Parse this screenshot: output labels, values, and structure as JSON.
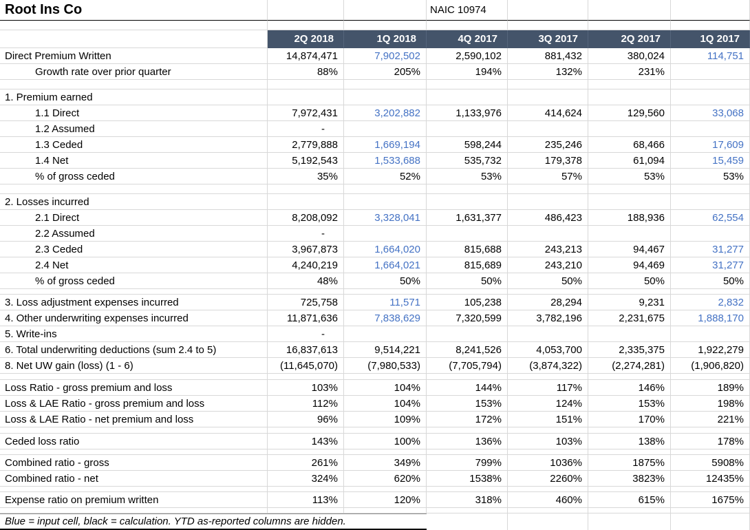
{
  "title": "Root Ins Co",
  "naic": "NAIC 10974",
  "footer_note": "Blue = input cell, black = calculation.  YTD as-reported columns are hidden.",
  "columns": [
    "2Q 2018",
    "1Q 2018",
    "4Q 2017",
    "3Q 2017",
    "2Q 2017",
    "1Q 2017"
  ],
  "colors": {
    "header_bg": "#44546A",
    "header_text": "#FFFFFF",
    "input_blue": "#4472C4",
    "calc_black": "#000000",
    "gridline": "#D8D8D8"
  },
  "rows": [
    {
      "label": "Direct Premium Written",
      "indent": 0,
      "values": [
        "14,874,471",
        "7,902,502",
        "2,590,102",
        "881,432",
        "380,024",
        "114,751"
      ],
      "blue": [
        1,
        5
      ]
    },
    {
      "label": "Growth rate over prior quarter",
      "indent": 1,
      "values": [
        "88%",
        "205%",
        "194%",
        "132%",
        "231%",
        ""
      ]
    },
    {
      "spacer": 14
    },
    {
      "label": "1. Premium earned",
      "indent": 0,
      "values": [
        "",
        "",
        "",
        "",
        "",
        ""
      ]
    },
    {
      "label": "1.1 Direct",
      "indent": 1,
      "values": [
        "7,972,431",
        "3,202,882",
        "1,133,976",
        "414,624",
        "129,560",
        "33,068"
      ],
      "blue": [
        1,
        5
      ]
    },
    {
      "label": "1.2 Assumed",
      "indent": 1,
      "values": [
        "-",
        "",
        "",
        "",
        "",
        ""
      ]
    },
    {
      "label": "1.3 Ceded",
      "indent": 1,
      "values": [
        "2,779,888",
        "1,669,194",
        "598,244",
        "235,246",
        "68,466",
        "17,609"
      ],
      "blue": [
        1,
        5
      ]
    },
    {
      "label": "1.4 Net",
      "indent": 1,
      "values": [
        "5,192,543",
        "1,533,688",
        "535,732",
        "179,378",
        "61,094",
        "15,459"
      ],
      "blue": [
        1,
        5
      ]
    },
    {
      "label": "% of gross ceded",
      "indent": 1,
      "values": [
        "35%",
        "52%",
        "53%",
        "57%",
        "53%",
        "53%"
      ]
    },
    {
      "spacer": 14
    },
    {
      "label": "2. Losses incurred",
      "indent": 0,
      "values": [
        "",
        "",
        "",
        "",
        "",
        ""
      ]
    },
    {
      "label": "2.1 Direct",
      "indent": 1,
      "values": [
        "8,208,092",
        "3,328,041",
        "1,631,377",
        "486,423",
        "188,936",
        "62,554"
      ],
      "blue": [
        1,
        5
      ]
    },
    {
      "label": "2.2 Assumed",
      "indent": 1,
      "values": [
        "-",
        "",
        "",
        "",
        "",
        ""
      ]
    },
    {
      "label": "2.3 Ceded",
      "indent": 1,
      "values": [
        "3,967,873",
        "1,664,020",
        "815,688",
        "243,213",
        "94,467",
        "31,277"
      ],
      "blue": [
        1,
        5
      ]
    },
    {
      "label": "2.4 Net",
      "indent": 1,
      "values": [
        "4,240,219",
        "1,664,021",
        "815,689",
        "243,210",
        "94,469",
        "31,277"
      ],
      "blue": [
        1,
        5
      ]
    },
    {
      "label": "% of gross ceded",
      "indent": 1,
      "values": [
        "48%",
        "50%",
        "50%",
        "50%",
        "50%",
        "50%"
      ]
    },
    {
      "spacer": 8
    },
    {
      "label": "3. Loss adjustment expenses incurred",
      "indent": 0,
      "values": [
        "725,758",
        "11,571",
        "105,238",
        "28,294",
        "9,231",
        "2,832"
      ],
      "blue": [
        1,
        5
      ]
    },
    {
      "label": "4. Other underwriting expenses incurred",
      "indent": 0,
      "values": [
        "11,871,636",
        "7,838,629",
        "7,320,599",
        "3,782,196",
        "2,231,675",
        "1,888,170"
      ],
      "blue": [
        1,
        5
      ]
    },
    {
      "label": "5. Write-ins",
      "indent": 0,
      "values": [
        "-",
        "",
        "",
        "",
        "",
        ""
      ]
    },
    {
      "label": "6. Total underwriting deductions (sum 2.4 to 5)",
      "indent": 0,
      "values": [
        "16,837,613",
        "9,514,221",
        "8,241,526",
        "4,053,700",
        "2,335,375",
        "1,922,279"
      ]
    },
    {
      "label": "8. Net UW gain (loss) (1 - 6)",
      "indent": 0,
      "values": [
        "(11,645,070)",
        "(7,980,533)",
        "(7,705,794)",
        "(3,874,322)",
        "(2,274,281)",
        "(1,906,820)"
      ]
    },
    {
      "spacer": 9
    },
    {
      "label": "Loss Ratio - gross premium and loss",
      "indent": 0,
      "values": [
        "103%",
        "104%",
        "144%",
        "117%",
        "146%",
        "189%"
      ]
    },
    {
      "label": "Loss & LAE Ratio - gross premium and loss",
      "indent": 0,
      "values": [
        "112%",
        "104%",
        "153%",
        "124%",
        "153%",
        "198%"
      ]
    },
    {
      "label": "Loss & LAE Ratio - net premium and loss",
      "indent": 0,
      "values": [
        "96%",
        "109%",
        "172%",
        "151%",
        "170%",
        "221%"
      ]
    },
    {
      "spacer": 9
    },
    {
      "label": "Ceded loss ratio",
      "indent": 0,
      "values": [
        "143%",
        "100%",
        "136%",
        "103%",
        "138%",
        "178%"
      ]
    },
    {
      "spacer": 8
    },
    {
      "label": "Combined ratio - gross",
      "indent": 0,
      "values": [
        "261%",
        "349%",
        "799%",
        "1036%",
        "1875%",
        "5908%"
      ]
    },
    {
      "label": "Combined ratio - net",
      "indent": 0,
      "values": [
        "324%",
        "620%",
        "1538%",
        "2260%",
        "3823%",
        "12435%"
      ]
    },
    {
      "spacer": 8
    },
    {
      "label": "Expense ratio on premium written",
      "indent": 0,
      "values": [
        "113%",
        "120%",
        "318%",
        "460%",
        "615%",
        "1675%"
      ]
    },
    {
      "spacer": 8
    }
  ]
}
